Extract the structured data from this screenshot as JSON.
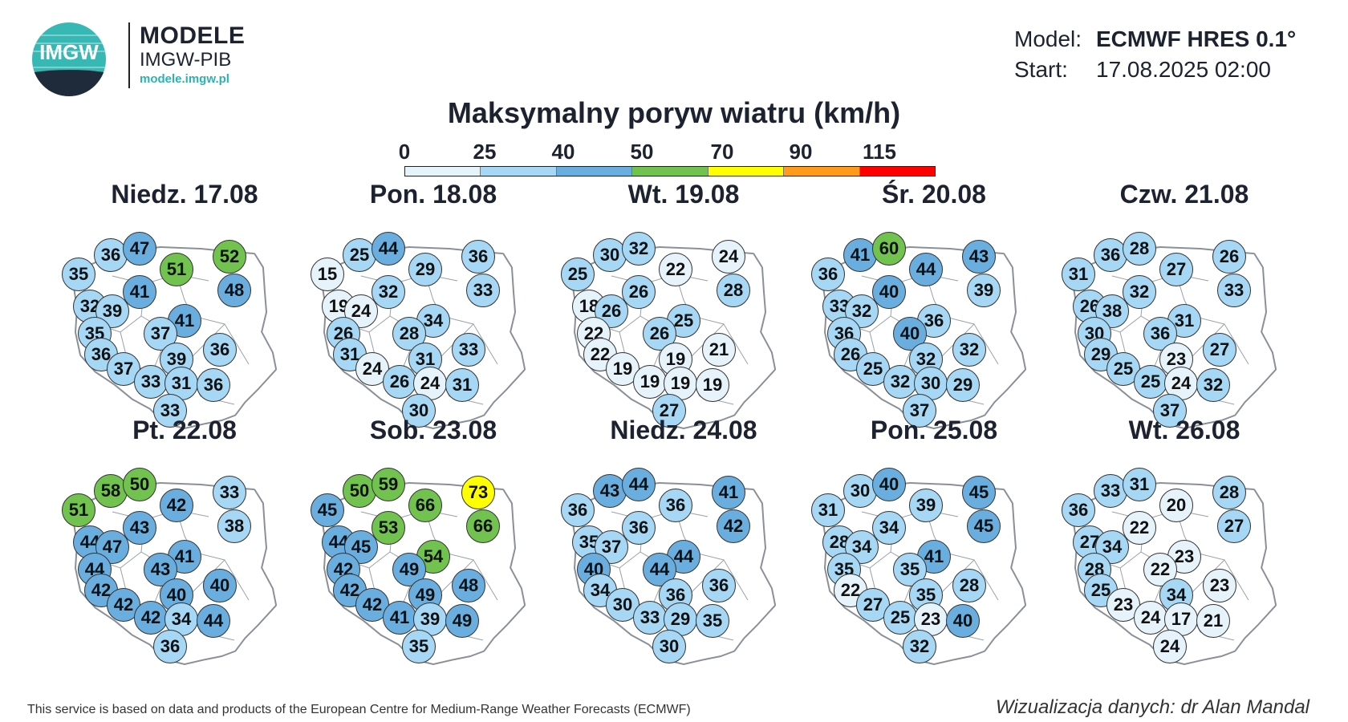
{
  "header": {
    "logo_text": "IMGW",
    "brand_title": "MODELE",
    "brand_sub": "IMGW-PIB",
    "brand_url": "modele.imgw.pl",
    "model_label": "Model:",
    "model_value": "ECMWF HRES 0.1°",
    "start_label": "Start:",
    "start_value": "17.08.2025 02:00"
  },
  "title": "Maksymalny poryw wiatru (km/h)",
  "scale": {
    "ticks": [
      "0",
      "25",
      "40",
      "50",
      "70",
      "90",
      "115"
    ],
    "colors": [
      "#e7f3fb",
      "#a6d7f4",
      "#6aaee0",
      "#71c24f",
      "#ffff00",
      "#ff9a1a",
      "#ff0000"
    ]
  },
  "colors": {
    "c1": "#e7f3fb",
    "c2": "#a6d7f4",
    "c3": "#6aaee0",
    "c4": "#71c24f",
    "c5": "#ffff00"
  },
  "days": [
    {
      "label": "Niedz. 17.08",
      "values": [
        35,
        36,
        47,
        51,
        52,
        41,
        48,
        32,
        39,
        41,
        35,
        37,
        36,
        39,
        36,
        37,
        33,
        31,
        36,
        33
      ]
    },
    {
      "label": "Pon. 18.08",
      "values": [
        15,
        25,
        44,
        29,
        36,
        32,
        33,
        19,
        24,
        34,
        26,
        28,
        33,
        31,
        31,
        24,
        26,
        24,
        31,
        30
      ]
    },
    {
      "label": "Wt. 19.08",
      "values": [
        25,
        30,
        32,
        22,
        24,
        26,
        28,
        18,
        26,
        25,
        22,
        26,
        21,
        19,
        22,
        19,
        19,
        19,
        19,
        27
      ]
    },
    {
      "label": "Śr. 20.08",
      "values": [
        36,
        41,
        60,
        44,
        43,
        40,
        39,
        33,
        32,
        36,
        36,
        40,
        32,
        32,
        26,
        25,
        32,
        30,
        29,
        37
      ]
    },
    {
      "label": "Czw. 21.08",
      "values": [
        31,
        36,
        28,
        27,
        26,
        32,
        33,
        26,
        38,
        31,
        30,
        36,
        27,
        23,
        29,
        25,
        25,
        24,
        32,
        37
      ]
    },
    {
      "label": "Pt. 22.08",
      "values": [
        51,
        58,
        50,
        42,
        33,
        43,
        38,
        44,
        47,
        41,
        44,
        43,
        40,
        40,
        42,
        42,
        42,
        34,
        44,
        36
      ]
    },
    {
      "label": "Sob. 23.08",
      "values": [
        45,
        50,
        59,
        66,
        73,
        53,
        66,
        44,
        45,
        54,
        42,
        49,
        48,
        49,
        42,
        42,
        41,
        39,
        49,
        35
      ]
    },
    {
      "label": "Niedz. 24.08",
      "values": [
        36,
        43,
        44,
        36,
        41,
        36,
        42,
        35,
        37,
        44,
        40,
        44,
        36,
        36,
        34,
        30,
        33,
        29,
        35,
        30
      ]
    },
    {
      "label": "Pon. 25.08",
      "values": [
        31,
        30,
        40,
        39,
        45,
        34,
        45,
        28,
        34,
        41,
        35,
        35,
        28,
        35,
        22,
        27,
        25,
        23,
        40,
        32
      ]
    },
    {
      "label": "Wt. 26.08",
      "values": [
        36,
        33,
        31,
        20,
        28,
        22,
        27,
        27,
        34,
        23,
        28,
        22,
        23,
        34,
        25,
        23,
        24,
        17,
        21,
        24
      ]
    }
  ],
  "footer": {
    "left": "This service is based on data and products of the European Centre for Medium-Range Weather Forecasts (ECMWF)",
    "right": "Wizualizacja danych: dr Alan Mandal"
  }
}
